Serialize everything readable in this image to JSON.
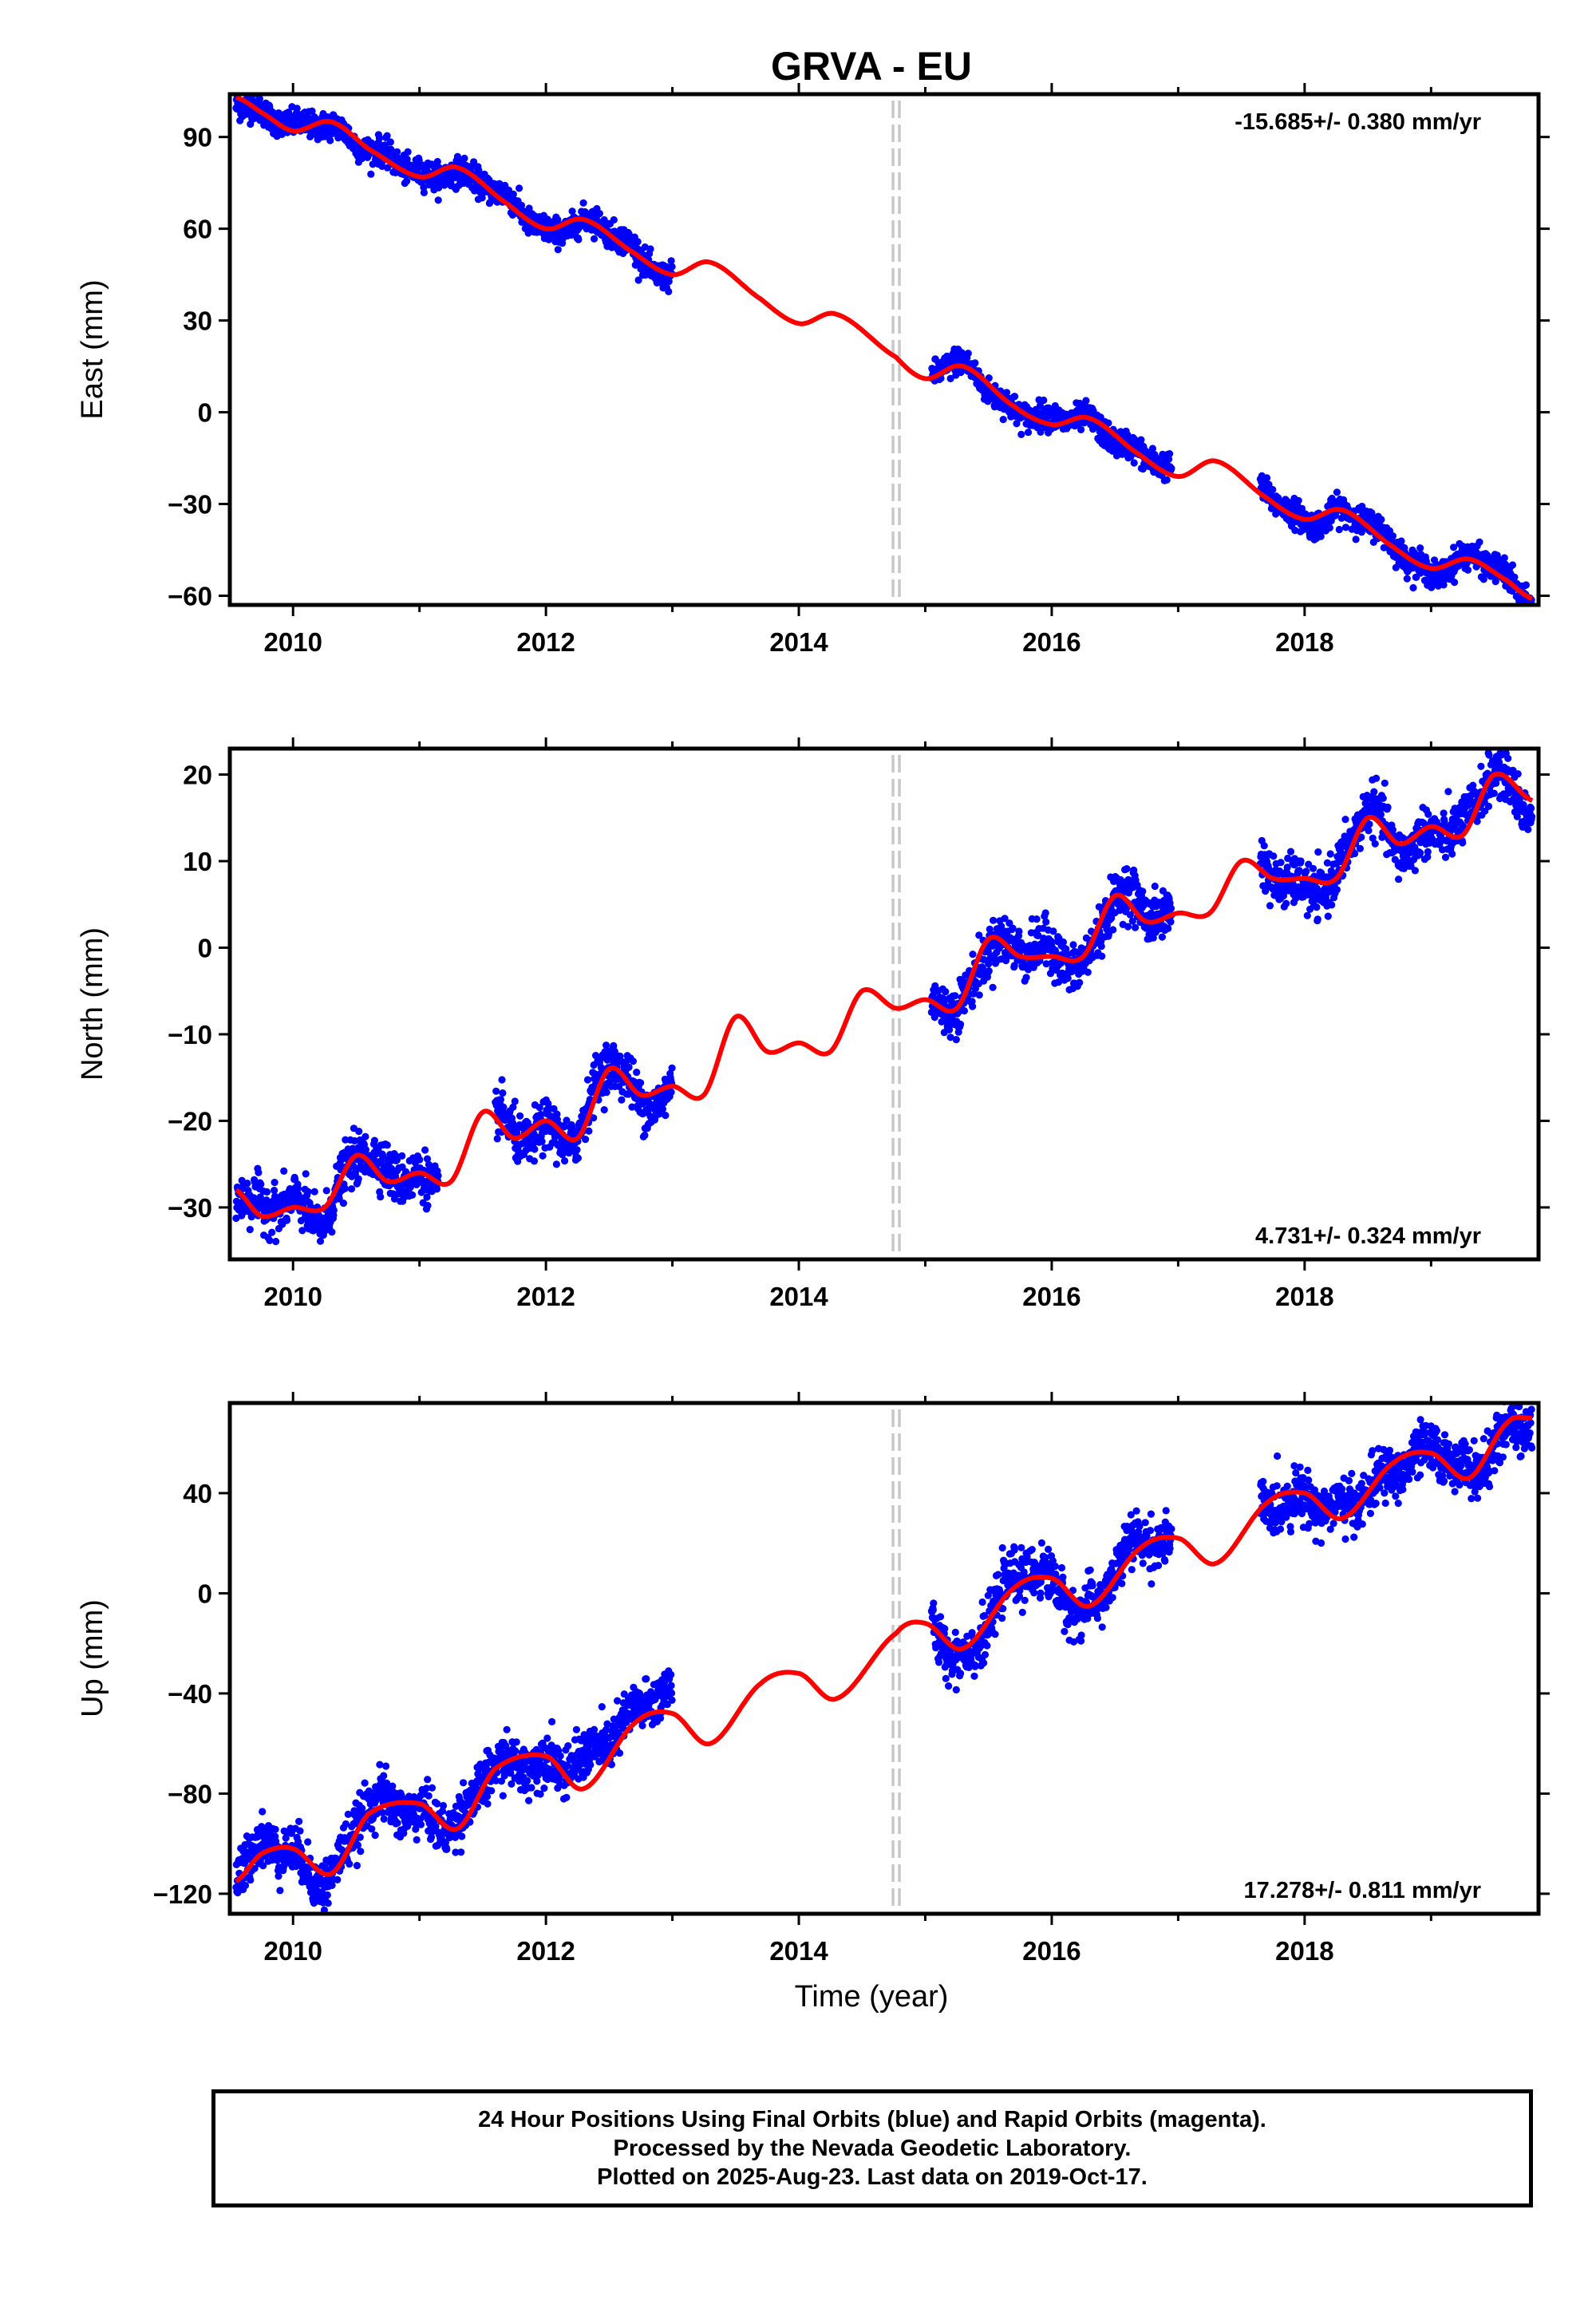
{
  "title": "GRVA - EU",
  "xlabel": "Time (year)",
  "x_ticks": [
    2010,
    2012,
    2014,
    2016,
    2018
  ],
  "colors": {
    "points": "#0000ff",
    "fit": "#ff0000",
    "gap_marker": "#c8c8c8",
    "axis": "#000000"
  },
  "footer": {
    "line1": "24 Hour Positions Using Final Orbits (blue) and Rapid Orbits (magenta).",
    "line2": "Processed by the Nevada Geodetic Laboratory.",
    "line3": "Plotted on 2025-Aug-23. Last data on 2019-Oct-17."
  },
  "chart_data": [
    {
      "type": "scatter",
      "ylabel": "East (mm)",
      "xlim": [
        2009.5,
        2019.85
      ],
      "ylim": [
        -63,
        104
      ],
      "yticks": [
        -60,
        -30,
        0,
        30,
        60,
        90
      ],
      "rate_label": "-15.685+/- 0.380 mm/yr",
      "rate_position": "top-right",
      "gap_marker_x": 2014.77,
      "data_intervals": [
        [
          2009.55,
          2013.0
        ],
        [
          2015.05,
          2016.95
        ],
        [
          2017.65,
          2019.8
        ]
      ],
      "fit_knots": {
        "x": [
          2009.55,
          2009.75,
          2010.0,
          2010.3,
          2010.6,
          2011.0,
          2011.3,
          2011.7,
          2012.0,
          2012.3,
          2012.7,
          2013.0,
          2013.3,
          2013.7,
          2014.0,
          2014.3,
          2014.77,
          2015.0,
          2015.3,
          2015.7,
          2016.0,
          2016.3,
          2016.7,
          2017.0,
          2017.3,
          2017.7,
          2018.0,
          2018.3,
          2018.7,
          2019.0,
          2019.3,
          2019.6,
          2019.8
        ],
        "y": [
          103,
          98,
          92,
          95,
          86,
          77,
          80,
          68,
          60,
          63,
          52,
          45,
          49,
          37,
          29,
          32,
          18,
          11,
          15,
          2,
          -4,
          -2,
          -14,
          -21,
          -16,
          -28,
          -35,
          -32,
          -44,
          -51,
          -48,
          -55,
          -61
        ]
      }
    },
    {
      "type": "scatter",
      "ylabel": "North (mm)",
      "xlim": [
        2009.5,
        2019.85
      ],
      "ylim": [
        -36,
        23
      ],
      "yticks": [
        -30,
        -20,
        -10,
        0,
        10,
        20
      ],
      "rate_label": "4.731+/- 0.324 mm/yr",
      "rate_position": "bottom-right",
      "gap_marker_x": 2014.77,
      "data_intervals": [
        [
          2009.55,
          2011.15
        ],
        [
          2011.6,
          2013.0
        ],
        [
          2015.05,
          2016.95
        ],
        [
          2017.65,
          2019.8
        ]
      ],
      "fit_knots": {
        "x": [
          2009.55,
          2009.75,
          2010.0,
          2010.25,
          2010.5,
          2010.75,
          2011.0,
          2011.25,
          2011.5,
          2011.75,
          2012.0,
          2012.25,
          2012.5,
          2012.75,
          2013.0,
          2013.25,
          2013.5,
          2013.75,
          2014.0,
          2014.25,
          2014.5,
          2014.77,
          2015.0,
          2015.25,
          2015.5,
          2015.75,
          2016.0,
          2016.25,
          2016.5,
          2016.75,
          2017.0,
          2017.25,
          2017.5,
          2017.75,
          2018.0,
          2018.25,
          2018.5,
          2018.75,
          2019.0,
          2019.25,
          2019.5,
          2019.8
        ],
        "y": [
          -28,
          -31,
          -30,
          -30,
          -24,
          -27,
          -26,
          -27,
          -19,
          -22,
          -20,
          -22,
          -14,
          -17,
          -16,
          -17,
          -8,
          -12,
          -11,
          -12,
          -5,
          -7,
          -6,
          -7,
          1,
          -1,
          -1,
          -1,
          6,
          3,
          4,
          4,
          10,
          8,
          8,
          8,
          15,
          12,
          14,
          13,
          20,
          17
        ]
      }
    },
    {
      "type": "scatter",
      "ylabel": "Up (mm)",
      "xlim": [
        2009.5,
        2019.85
      ],
      "ylim": [
        -128,
        76
      ],
      "yticks": [
        -120,
        -80,
        -40,
        0,
        40
      ],
      "rate_label": "17.278+/- 0.811 mm/yr",
      "rate_position": "bottom-right",
      "gap_marker_x": 2014.77,
      "data_intervals": [
        [
          2009.55,
          2013.0
        ],
        [
          2015.05,
          2016.95
        ],
        [
          2017.65,
          2019.8
        ]
      ],
      "fit_knots": {
        "x": [
          2009.55,
          2009.75,
          2010.0,
          2010.3,
          2010.6,
          2011.0,
          2011.3,
          2011.6,
          2012.0,
          2012.3,
          2012.7,
          2013.0,
          2013.3,
          2013.7,
          2014.0,
          2014.3,
          2014.77,
          2015.0,
          2015.3,
          2015.7,
          2016.0,
          2016.3,
          2016.7,
          2017.0,
          2017.3,
          2017.7,
          2018.0,
          2018.3,
          2018.7,
          2019.0,
          2019.3,
          2019.6,
          2019.8
        ],
        "y": [
          -115,
          -104,
          -102,
          -112,
          -88,
          -84,
          -94,
          -70,
          -65,
          -78,
          -52,
          -48,
          -60,
          -36,
          -32,
          -42,
          -16,
          -12,
          -22,
          2,
          6,
          -5,
          18,
          22,
          12,
          36,
          40,
          30,
          52,
          56,
          46,
          68,
          70
        ]
      }
    }
  ]
}
